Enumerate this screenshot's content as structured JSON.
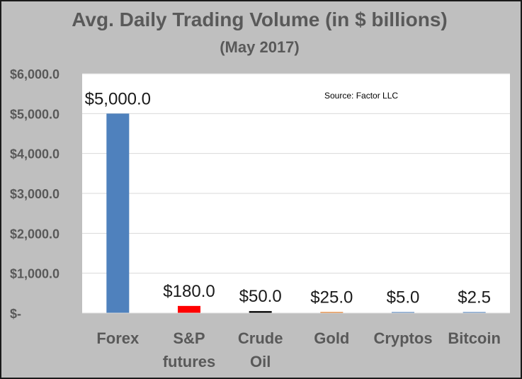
{
  "chart_data": {
    "type": "bar",
    "title": "Avg. Daily Trading Volume (in $ billions)",
    "subtitle": "(May 2017)",
    "source_note": "Source: Factor LLC",
    "categories": [
      [
        "Forex"
      ],
      [
        "S&P",
        "futures"
      ],
      [
        "Crude",
        "Oil"
      ],
      [
        "Gold"
      ],
      [
        "Cryptos"
      ],
      [
        "Bitcoin"
      ]
    ],
    "values": [
      5000.0,
      180.0,
      50.0,
      25.0,
      5.0,
      2.5
    ],
    "data_labels": [
      "$5,000.0",
      "$180.0",
      "$50.0",
      "$25.0",
      "$5.0",
      "$2.5"
    ],
    "bar_colors": [
      "#4f81bd",
      "#ff0000",
      "#000000",
      "#e46c0a",
      "#4f81bd",
      "#4f81bd"
    ],
    "ylim": [
      0,
      6000
    ],
    "yticks": [
      0,
      1000,
      2000,
      3000,
      4000,
      5000,
      6000
    ],
    "ytick_labels": [
      "$-",
      "$1,000.0",
      "$2,000.0",
      "$3,000.0",
      "$4,000.0",
      "$5,000.0",
      "$6,000.0"
    ],
    "grid": true,
    "legend": "none"
  }
}
